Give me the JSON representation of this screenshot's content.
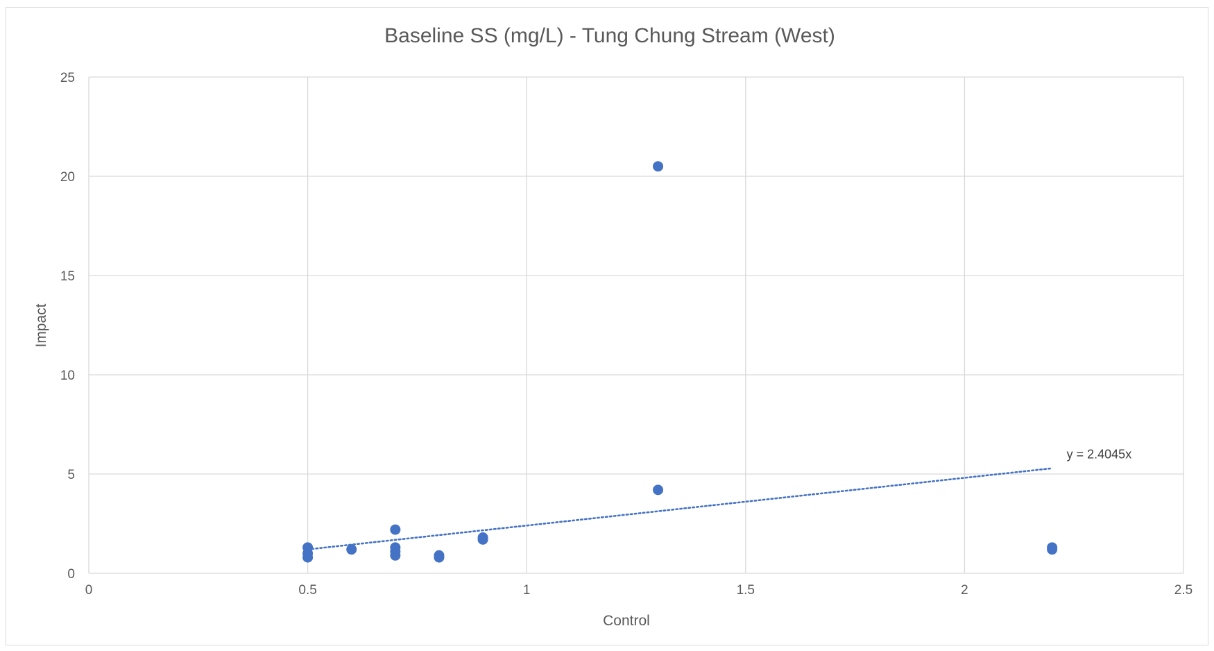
{
  "chart_data": {
    "type": "scatter",
    "title": "Baseline SS (mg/L) - Tung Chung Stream (West)",
    "xlabel": "Control",
    "ylabel": "Impact",
    "xlim": [
      0,
      2.5
    ],
    "ylim": [
      0,
      25
    ],
    "x_ticks": [
      "0",
      "0.5",
      "1",
      "1.5",
      "2",
      "2.5"
    ],
    "y_ticks": [
      "0",
      "5",
      "10",
      "15",
      "20",
      "25"
    ],
    "grid": true,
    "legend": "none",
    "series": [
      {
        "points": [
          {
            "x": 0.5,
            "y": 1.3
          },
          {
            "x": 0.5,
            "y": 1.0
          },
          {
            "x": 0.5,
            "y": 0.8
          },
          {
            "x": 0.6,
            "y": 1.2
          },
          {
            "x": 0.7,
            "y": 2.2
          },
          {
            "x": 0.7,
            "y": 1.3
          },
          {
            "x": 0.7,
            "y": 1.1
          },
          {
            "x": 0.7,
            "y": 0.9
          },
          {
            "x": 0.8,
            "y": 0.9
          },
          {
            "x": 0.8,
            "y": 0.8
          },
          {
            "x": 0.9,
            "y": 1.8
          },
          {
            "x": 0.9,
            "y": 1.7
          },
          {
            "x": 1.3,
            "y": 20.5
          },
          {
            "x": 1.3,
            "y": 4.2
          },
          {
            "x": 2.2,
            "y": 1.3
          },
          {
            "x": 2.2,
            "y": 1.2
          }
        ],
        "color": "#4472c4"
      }
    ],
    "trendline": {
      "type": "linear-through-origin",
      "slope": 2.4045,
      "x_range": [
        0.5,
        2.2
      ],
      "label": "y = 2.4045x",
      "color": "#4472c4",
      "style": "dotted"
    },
    "gridline_color": "#d9d9d9",
    "axis_text_color": "#595959"
  }
}
